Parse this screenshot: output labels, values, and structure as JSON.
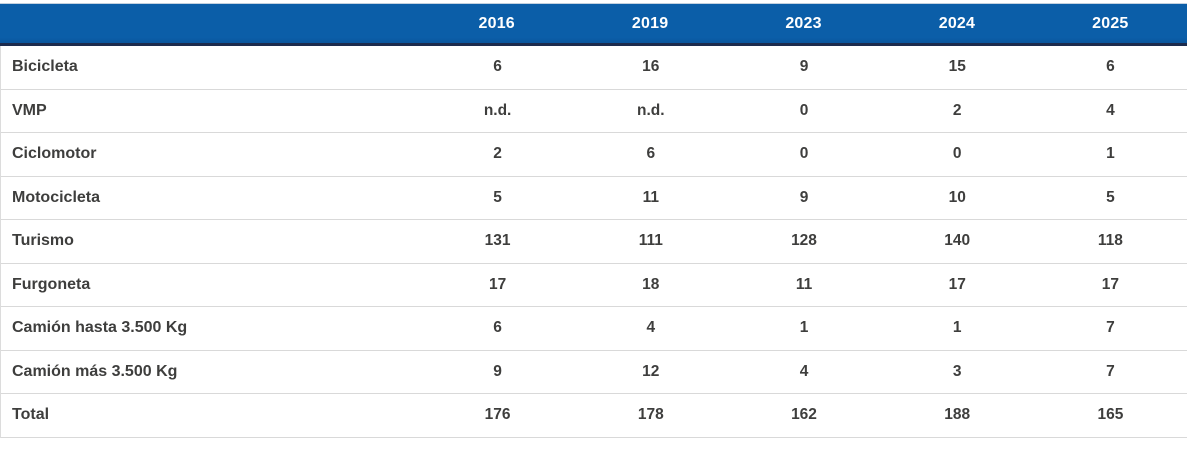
{
  "table": {
    "header": {
      "label_column": "",
      "years": [
        "2016",
        "2019",
        "2023",
        "2024",
        "2025"
      ]
    },
    "rows": [
      {
        "label": "Bicicleta",
        "values": [
          "6",
          "16",
          "9",
          "15",
          "6"
        ]
      },
      {
        "label": "VMP",
        "values": [
          "n.d.",
          "n.d.",
          "0",
          "2",
          "4"
        ]
      },
      {
        "label": "Ciclomotor",
        "values": [
          "2",
          "6",
          "0",
          "0",
          "1"
        ]
      },
      {
        "label": "Motocicleta",
        "values": [
          "5",
          "11",
          "9",
          "10",
          "5"
        ]
      },
      {
        "label": "Turismo",
        "values": [
          "131",
          "111",
          "128",
          "140",
          "118"
        ]
      },
      {
        "label": "Furgoneta",
        "values": [
          "17",
          "18",
          "11",
          "17",
          "17"
        ]
      },
      {
        "label": "Camión hasta 3.500 Kg",
        "values": [
          "6",
          "4",
          "1",
          "1",
          "7"
        ]
      },
      {
        "label": "Camión más 3.500 Kg",
        "values": [
          "9",
          "12",
          "4",
          "3",
          "7"
        ]
      },
      {
        "label": "Total",
        "values": [
          "176",
          "178",
          "162",
          "188",
          "165"
        ]
      }
    ],
    "colors": {
      "header_bg": "#0b5ea8",
      "header_bottom_border": "#1c2b4d",
      "row_separator": "#d9d9d9",
      "body_text": "#3e3e3d",
      "header_text": "#ffffff"
    }
  },
  "chart_data": {
    "type": "table",
    "title": "",
    "columns": [
      "",
      "2016",
      "2019",
      "2023",
      "2024",
      "2025"
    ],
    "rows": [
      [
        "Bicicleta",
        "6",
        "16",
        "9",
        "15",
        "6"
      ],
      [
        "VMP",
        "n.d.",
        "n.d.",
        "0",
        "2",
        "4"
      ],
      [
        "Ciclomotor",
        "2",
        "6",
        "0",
        "0",
        "1"
      ],
      [
        "Motocicleta",
        "5",
        "11",
        "9",
        "10",
        "5"
      ],
      [
        "Turismo",
        "131",
        "111",
        "128",
        "140",
        "118"
      ],
      [
        "Furgoneta",
        "17",
        "18",
        "11",
        "17",
        "17"
      ],
      [
        "Camión hasta 3.500 Kg",
        "6",
        "4",
        "1",
        "1",
        "7"
      ],
      [
        "Camión más 3.500 Kg",
        "9",
        "12",
        "4",
        "3",
        "7"
      ],
      [
        "Total",
        "176",
        "178",
        "162",
        "188",
        "165"
      ]
    ]
  }
}
